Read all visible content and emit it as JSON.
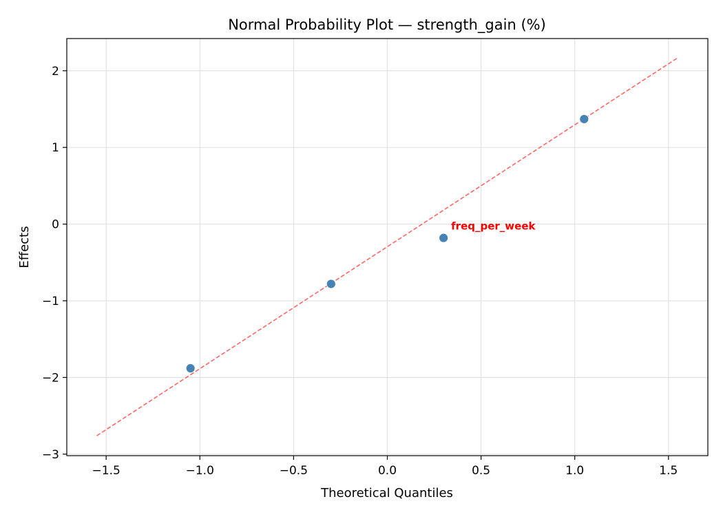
{
  "chart_data": {
    "type": "scatter",
    "title": "Normal Probability Plot — strength_gain (%)",
    "xlabel": "Theoretical Quantiles",
    "ylabel": "Effects",
    "xlim": [
      -1.71,
      1.71
    ],
    "ylim": [
      -3.02,
      2.42
    ],
    "xticks": [
      -1.5,
      -1.0,
      -0.5,
      0.0,
      0.5,
      1.0,
      1.5
    ],
    "xtick_labels": [
      "−1.5",
      "−1.0",
      "−0.5",
      "0.0",
      "0.5",
      "1.0",
      "1.5"
    ],
    "yticks": [
      -3,
      -2,
      -1,
      0,
      1,
      2
    ],
    "ytick_labels": [
      "−3",
      "−2",
      "−1",
      "0",
      "1",
      "2"
    ],
    "grid": true,
    "points": [
      {
        "x": -1.05,
        "y": -1.88
      },
      {
        "x": -0.3,
        "y": -0.78
      },
      {
        "x": 0.3,
        "y": -0.18,
        "label": "freq_per_week"
      },
      {
        "x": 1.05,
        "y": 1.37
      }
    ],
    "reference_line": {
      "x": [
        -1.55,
        1.55
      ],
      "y": [
        -2.76,
        2.17
      ],
      "style": "dashed"
    },
    "colors": {
      "points": "#4682b4",
      "line": "#ff6666",
      "annotation": "#ff0000"
    }
  }
}
